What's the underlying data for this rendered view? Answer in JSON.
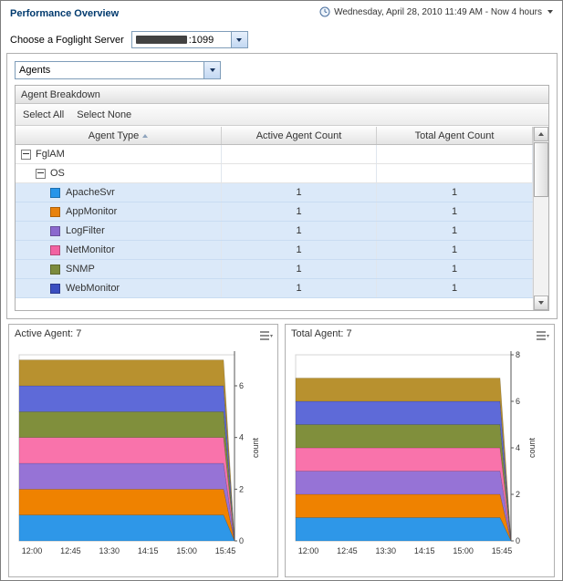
{
  "header": {
    "title": "Performance Overview",
    "time_range": "Wednesday, April 28, 2010 11:49 AM - Now 4 hours",
    "server_label": "Choose a Foglight Server",
    "server_value_suffix": ":1099"
  },
  "view_selector": {
    "value": "Agents"
  },
  "breakdown": {
    "title": "Agent Breakdown",
    "toolbar": {
      "select_all": "Select All",
      "select_none": "Select None"
    },
    "columns": [
      "Agent Type",
      "Active Agent Count",
      "Total Agent Count"
    ],
    "tree": [
      {
        "label": "FglAM",
        "level": 0
      },
      {
        "label": "OS",
        "level": 1
      }
    ],
    "agents": [
      {
        "label": "ApacheSvr",
        "color": "#2795e9",
        "active": 1,
        "total": 1
      },
      {
        "label": "AppMonitor",
        "color": "#e8820e",
        "active": 1,
        "total": 1
      },
      {
        "label": "LogFilter",
        "color": "#8b68ce",
        "active": 1,
        "total": 1
      },
      {
        "label": "NetMonitor",
        "color": "#f263a2",
        "active": 1,
        "total": 1
      },
      {
        "label": "SNMP",
        "color": "#7c8b3d",
        "active": 1,
        "total": 1
      },
      {
        "label": "WebMonitor",
        "color": "#3a4ec0",
        "active": 1,
        "total": 1
      }
    ]
  },
  "chart_data": [
    {
      "type": "area",
      "stacked": true,
      "title": "Active Agent: 7",
      "x": [
        "12:00",
        "12:45",
        "13:30",
        "14:15",
        "15:00",
        "15:45"
      ],
      "series": [
        {
          "name": "ApacheSvr",
          "color": "#2e97e8",
          "values": [
            1,
            1,
            1,
            1,
            1,
            1
          ]
        },
        {
          "name": "AppMonitor",
          "color": "#ef8200",
          "values": [
            1,
            1,
            1,
            1,
            1,
            1
          ]
        },
        {
          "name": "LogFilter",
          "color": "#9673d6",
          "values": [
            1,
            1,
            1,
            1,
            1,
            1
          ]
        },
        {
          "name": "NetMonitor",
          "color": "#f973ab",
          "values": [
            1,
            1,
            1,
            1,
            1,
            1
          ]
        },
        {
          "name": "SNMP",
          "color": "#808f3c",
          "values": [
            1,
            1,
            1,
            1,
            1,
            1
          ]
        },
        {
          "name": "WebMonitor",
          "color": "#5e6ad8",
          "values": [
            1,
            1,
            1,
            1,
            1,
            1
          ]
        },
        {
          "name": "FglAM",
          "color": "#b8912f",
          "values": [
            1,
            1,
            1,
            1,
            1,
            1
          ]
        }
      ],
      "ylabel": "count",
      "ylim": [
        0,
        7.2
      ],
      "yticks": [
        0,
        2,
        4,
        6
      ],
      "legend": "none",
      "grid": false
    },
    {
      "type": "area",
      "stacked": true,
      "title": "Total Agent: 7",
      "x": [
        "12:00",
        "12:45",
        "13:30",
        "14:15",
        "15:00",
        "15:45"
      ],
      "series": [
        {
          "name": "ApacheSvr",
          "color": "#2e97e8",
          "values": [
            1,
            1,
            1,
            1,
            1,
            1
          ]
        },
        {
          "name": "AppMonitor",
          "color": "#ef8200",
          "values": [
            1,
            1,
            1,
            1,
            1,
            1
          ]
        },
        {
          "name": "LogFilter",
          "color": "#9673d6",
          "values": [
            1,
            1,
            1,
            1,
            1,
            1
          ]
        },
        {
          "name": "NetMonitor",
          "color": "#f973ab",
          "values": [
            1,
            1,
            1,
            1,
            1,
            1
          ]
        },
        {
          "name": "SNMP",
          "color": "#808f3c",
          "values": [
            1,
            1,
            1,
            1,
            1,
            1
          ]
        },
        {
          "name": "WebMonitor",
          "color": "#5e6ad8",
          "values": [
            1,
            1,
            1,
            1,
            1,
            1
          ]
        },
        {
          "name": "FglAM",
          "color": "#b8912f",
          "values": [
            1,
            1,
            1,
            1,
            1,
            1
          ]
        }
      ],
      "ylabel": "count",
      "ylim": [
        0,
        8
      ],
      "yticks": [
        0,
        2,
        4,
        6,
        8
      ],
      "legend": "none",
      "grid": false
    }
  ],
  "icons": {
    "clock": "clock-face",
    "dropdown": "caret-down-triangle",
    "collapse": "minus-box",
    "sort_ascending": "triangle-up",
    "scroll_up": "triangle-up",
    "scroll_down": "triangle-down",
    "chart_options": "customizer-lines"
  }
}
